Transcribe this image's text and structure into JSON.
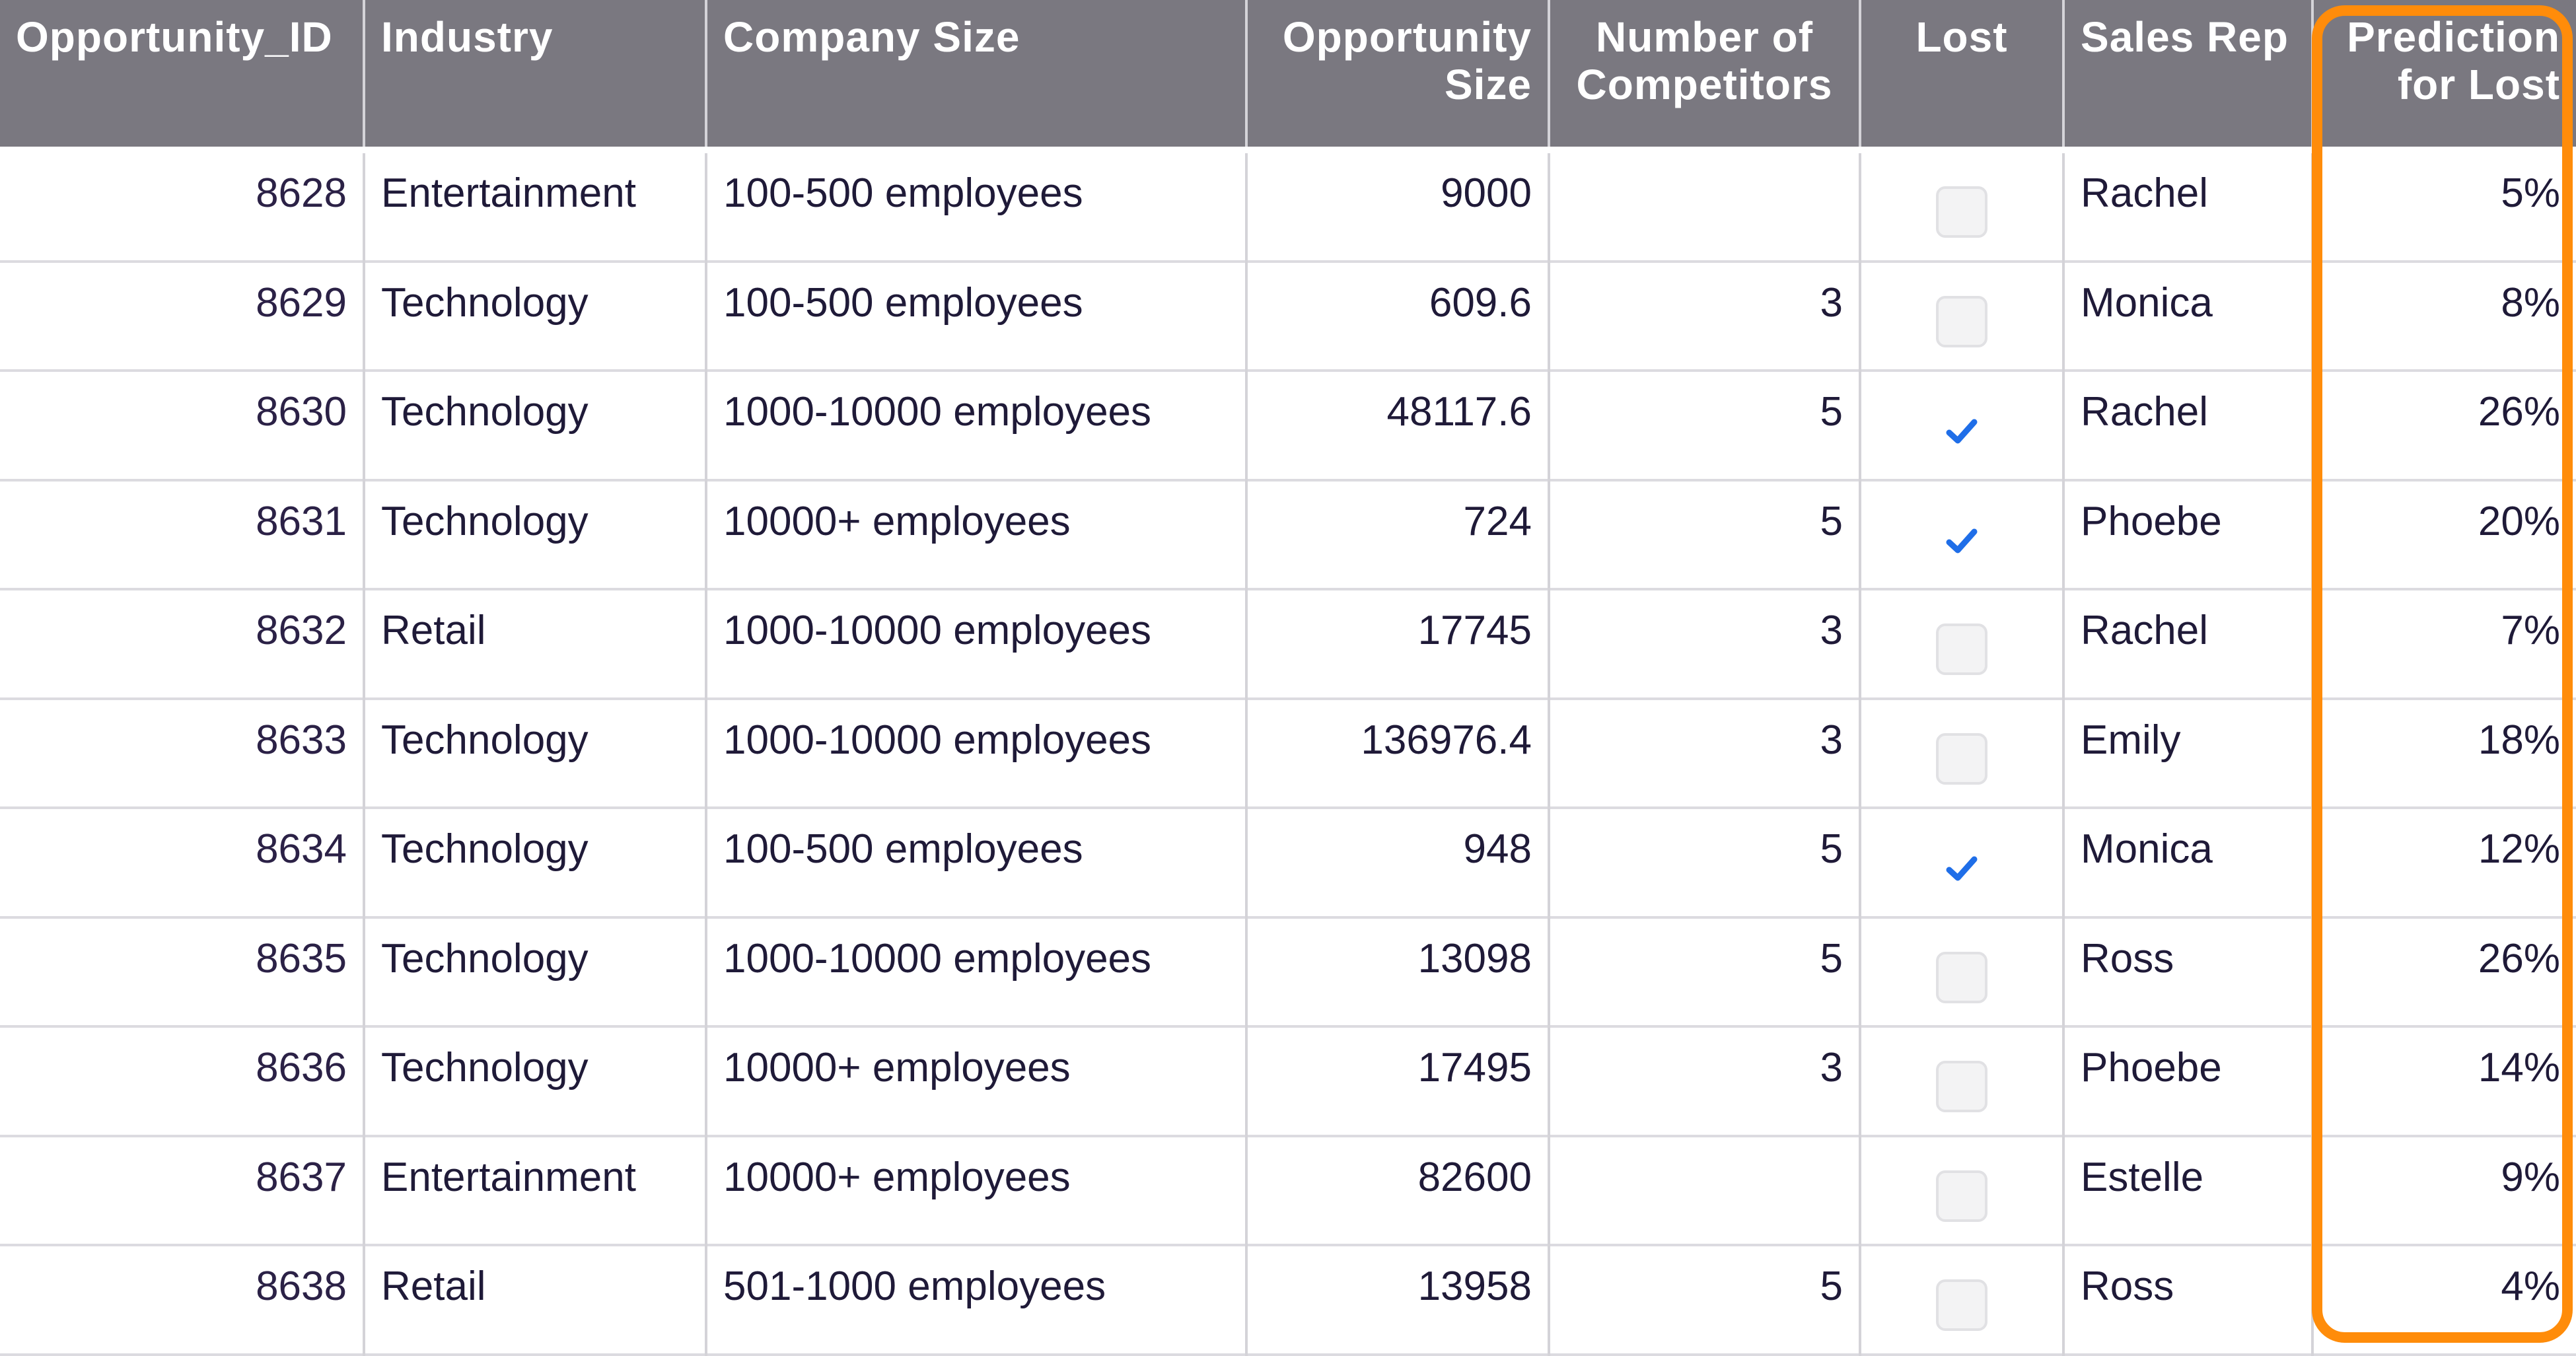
{
  "table": {
    "columns": [
      {
        "key": "id",
        "label": "Opportunity_ID",
        "align": "left"
      },
      {
        "key": "industry",
        "label": "Industry",
        "align": "left"
      },
      {
        "key": "company_size",
        "label": "Company Size",
        "align": "left"
      },
      {
        "key": "opp_size",
        "label": "Opportunity\nSize",
        "align": "right"
      },
      {
        "key": "competitors",
        "label": "Number of\nCompetitors",
        "align": "center"
      },
      {
        "key": "lost",
        "label": "Lost",
        "align": "center"
      },
      {
        "key": "sales_rep",
        "label": "Sales Rep",
        "align": "left"
      },
      {
        "key": "prediction",
        "label": "Prediction\nfor Lost",
        "align": "right"
      }
    ],
    "rows": [
      {
        "id": "8628",
        "industry": "Entertainment",
        "company_size": "100-500 employees",
        "opp_size": "9000",
        "competitors": "",
        "lost": false,
        "sales_rep": "Rachel",
        "prediction": "5%"
      },
      {
        "id": "8629",
        "industry": "Technology",
        "company_size": "100-500 employees",
        "opp_size": "609.6",
        "competitors": "3",
        "lost": false,
        "sales_rep": "Monica",
        "prediction": "8%"
      },
      {
        "id": "8630",
        "industry": "Technology",
        "company_size": "1000-10000 employees",
        "opp_size": "48117.6",
        "competitors": "5",
        "lost": true,
        "sales_rep": "Rachel",
        "prediction": "26%"
      },
      {
        "id": "8631",
        "industry": "Technology",
        "company_size": "10000+ employees",
        "opp_size": "724",
        "competitors": "5",
        "lost": true,
        "sales_rep": "Phoebe",
        "prediction": "20%"
      },
      {
        "id": "8632",
        "industry": "Retail",
        "company_size": "1000-10000 employees",
        "opp_size": "17745",
        "competitors": "3",
        "lost": false,
        "sales_rep": "Rachel",
        "prediction": "7%"
      },
      {
        "id": "8633",
        "industry": "Technology",
        "company_size": "1000-10000 employees",
        "opp_size": "136976.4",
        "competitors": "3",
        "lost": false,
        "sales_rep": "Emily",
        "prediction": "18%"
      },
      {
        "id": "8634",
        "industry": "Technology",
        "company_size": "100-500 employees",
        "opp_size": "948",
        "competitors": "5",
        "lost": true,
        "sales_rep": "Monica",
        "prediction": "12%"
      },
      {
        "id": "8635",
        "industry": "Technology",
        "company_size": "1000-10000 employees",
        "opp_size": "13098",
        "competitors": "5",
        "lost": false,
        "sales_rep": "Ross",
        "prediction": "26%"
      },
      {
        "id": "8636",
        "industry": "Technology",
        "company_size": "10000+ employees",
        "opp_size": "17495",
        "competitors": "3",
        "lost": false,
        "sales_rep": "Phoebe",
        "prediction": "14%"
      },
      {
        "id": "8637",
        "industry": "Entertainment",
        "company_size": "10000+ employees",
        "opp_size": "82600",
        "competitors": "",
        "lost": false,
        "sales_rep": "Estelle",
        "prediction": "9%"
      },
      {
        "id": "8638",
        "industry": "Retail",
        "company_size": "501-1000 employees",
        "opp_size": "13958",
        "competitors": "5",
        "lost": false,
        "sales_rep": "Ross",
        "prediction": "4%"
      }
    ]
  },
  "colors": {
    "header_bg": "#7a7880",
    "header_text": "#ffffff",
    "cell_text": "#1f1a38",
    "check": "#1f6ee8",
    "highlight": "#ff8c0a"
  },
  "icons": {
    "checked": "checkmark-icon",
    "unchecked": "empty-checkbox-icon"
  }
}
